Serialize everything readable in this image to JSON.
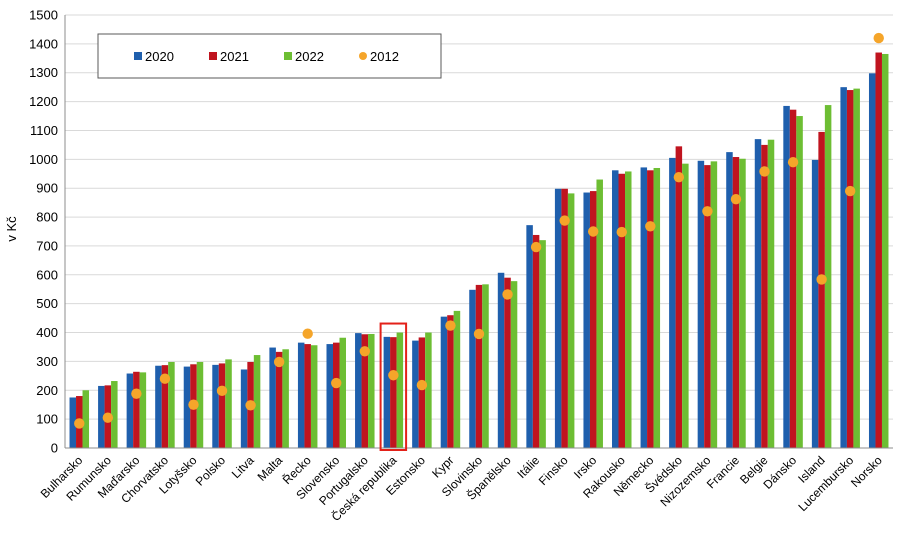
{
  "chart_data": {
    "type": "bar",
    "title": "",
    "xlabel": "",
    "ylabel": "v Kč",
    "ylim": [
      0,
      1500
    ],
    "yticks": [
      0,
      100,
      200,
      300,
      400,
      500,
      600,
      700,
      800,
      900,
      1000,
      1100,
      1200,
      1300,
      1400,
      1500
    ],
    "grid": true,
    "legend_position": "top-left",
    "categories": [
      "Bulharsko",
      "Rumunsko",
      "Maďarsko",
      "Chorvatsko",
      "Lotyšsko",
      "Polsko",
      "Litva",
      "Malta",
      "Řecko",
      "Slovensko",
      "Portugalsko",
      "Česká republika",
      "Estonsko",
      "Kypr",
      "Slovinsko",
      "Španělsko",
      "Itálie",
      "Finsko",
      "Irsko",
      "Rakousko",
      "Německo",
      "Švédsko",
      "Nizozemsko",
      "Francie",
      "Belgie",
      "Dánsko",
      "Island",
      "Lucembursko",
      "Norsko"
    ],
    "series": [
      {
        "name": "2020",
        "type": "bar",
        "color": "#1F5FAD",
        "values": [
          175,
          215,
          258,
          285,
          282,
          288,
          272,
          348,
          365,
          360,
          398,
          385,
          372,
          455,
          548,
          607,
          772,
          898,
          885,
          962,
          972,
          1005,
          995,
          1025,
          1070,
          1185,
          998,
          1250,
          1298
        ]
      },
      {
        "name": "2021",
        "type": "bar",
        "color": "#C0141F",
        "values": [
          180,
          217,
          264,
          287,
          290,
          293,
          298,
          333,
          360,
          365,
          394,
          384,
          383,
          460,
          565,
          590,
          738,
          898,
          890,
          950,
          962,
          1045,
          980,
          1008,
          1050,
          1172,
          1095,
          1240,
          1370
        ]
      },
      {
        "name": "2022",
        "type": "bar",
        "color": "#6DBE33",
        "values": [
          200,
          232,
          262,
          298,
          298,
          307,
          322,
          342,
          356,
          382,
          395,
          400,
          400,
          475,
          567,
          578,
          720,
          882,
          930,
          958,
          970,
          985,
          993,
          1002,
          1068,
          1150,
          1188,
          1245,
          1365
        ]
      },
      {
        "name": "2012",
        "type": "marker",
        "color": "#F5A52A",
        "values": [
          85,
          105,
          188,
          240,
          150,
          198,
          148,
          298,
          396,
          225,
          335,
          252,
          218,
          424,
          395,
          532,
          696,
          788,
          750,
          748,
          768,
          938,
          820,
          862,
          958,
          990,
          584,
          890,
          1420
        ]
      }
    ],
    "highlight": {
      "category": "Česká republika",
      "color": "#E32119"
    }
  }
}
